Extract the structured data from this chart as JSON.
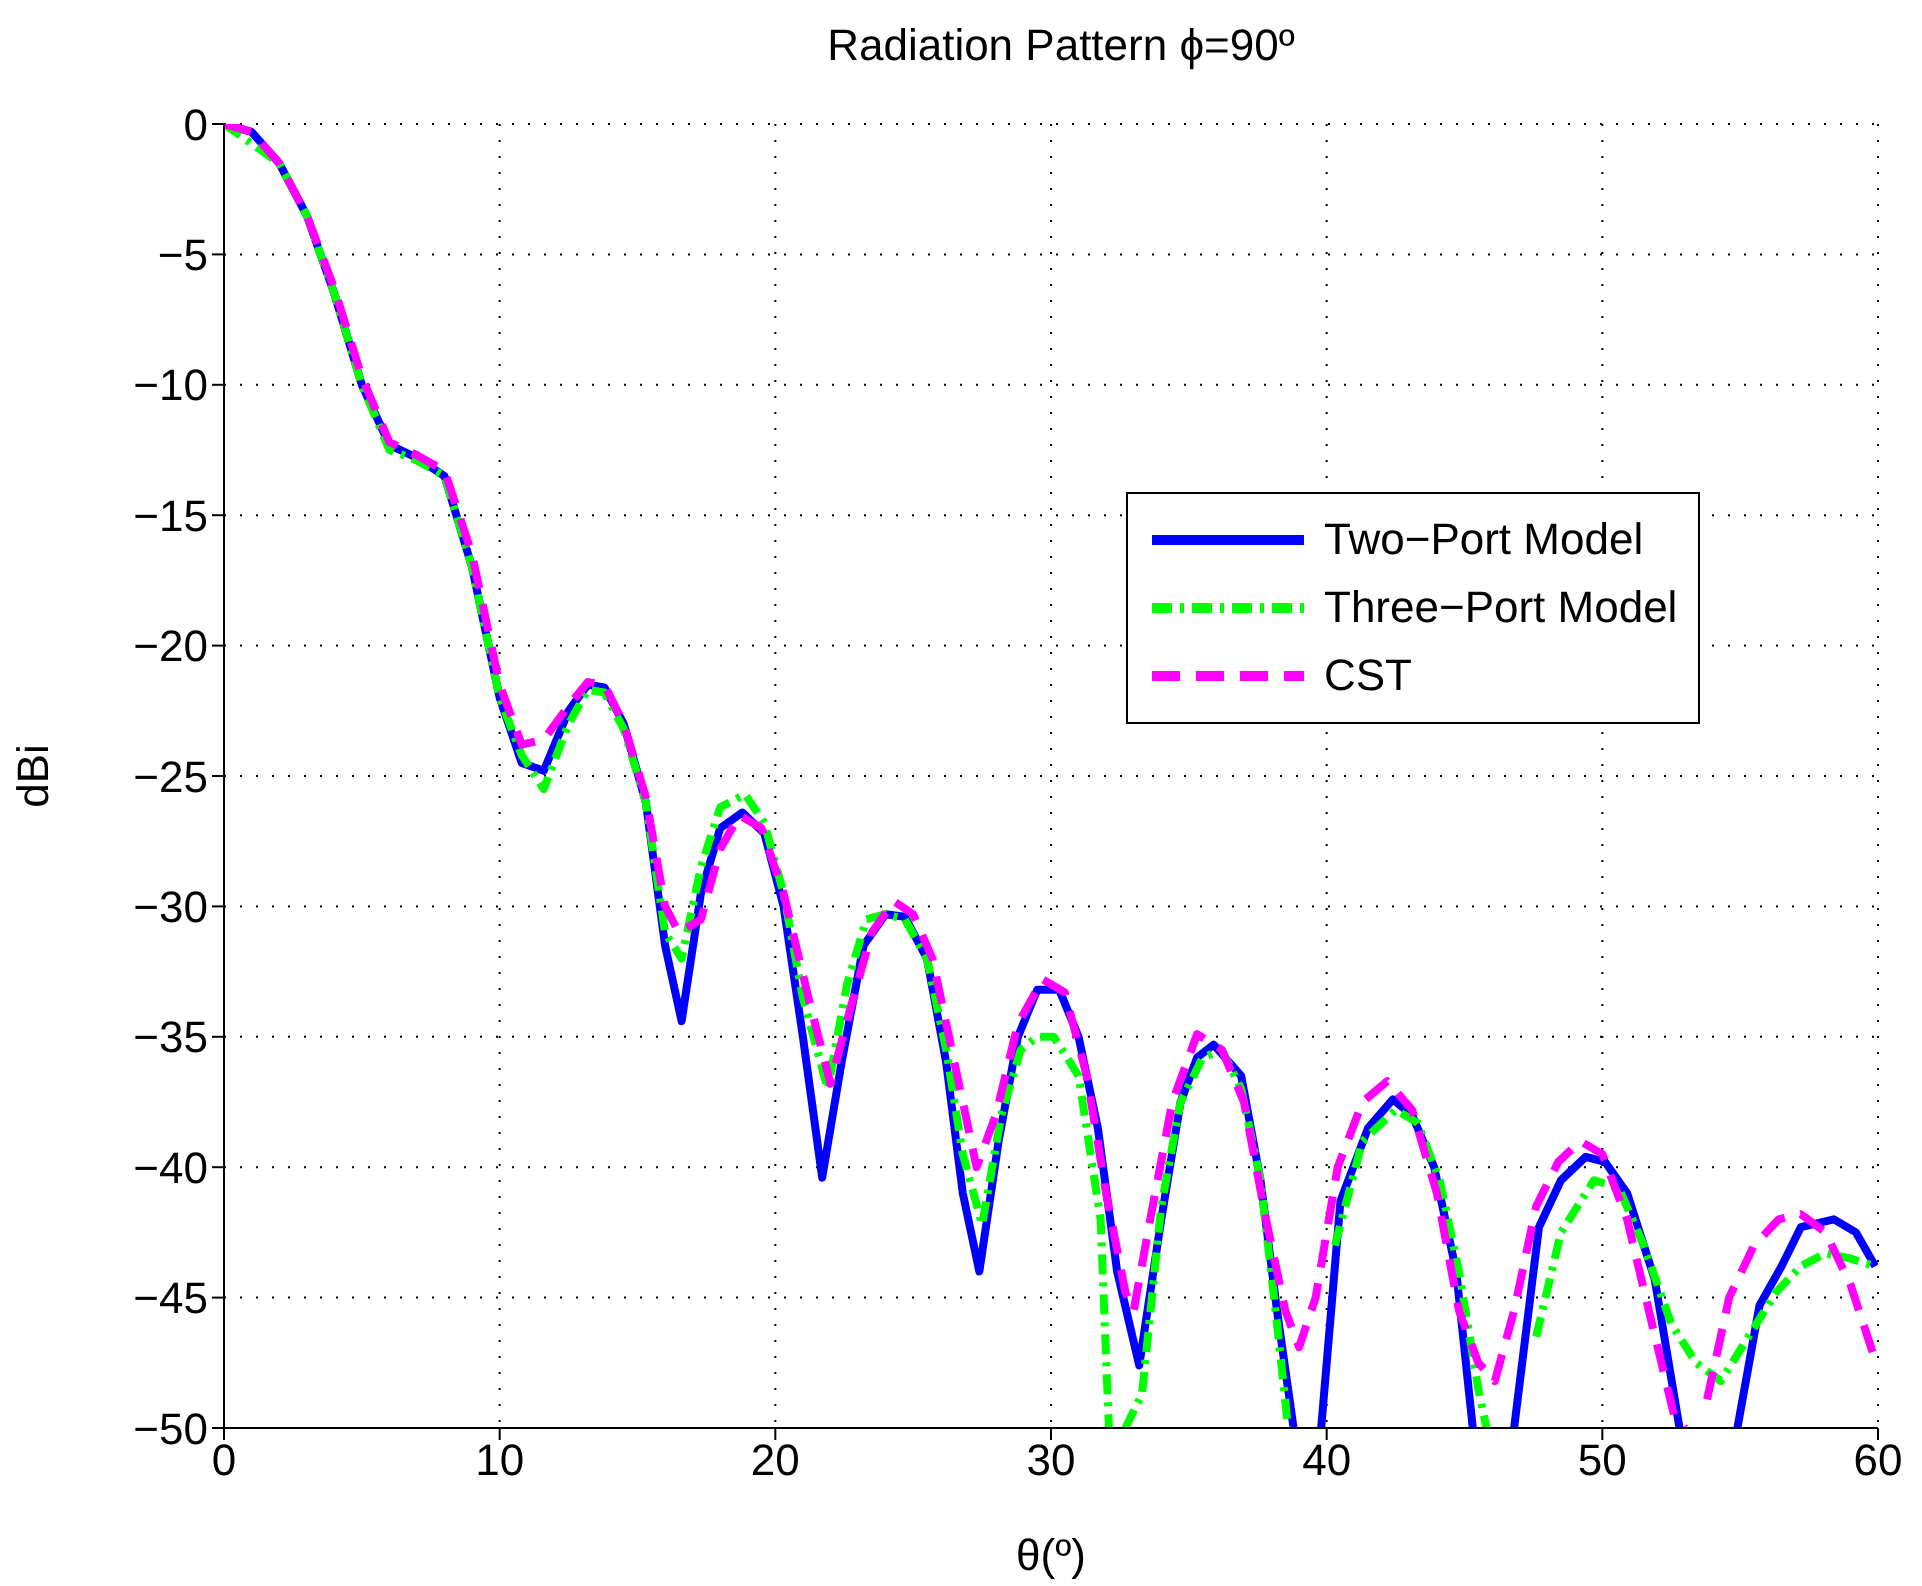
{
  "chart_data": {
    "type": "line",
    "title": "Radiation Pattern ϕ=90º",
    "xlabel": "θ(º)",
    "ylabel": "dBi",
    "xlim": [
      0,
      60
    ],
    "xticks": [
      0,
      10,
      20,
      30,
      40,
      50,
      60
    ],
    "ylim": [
      -50,
      0
    ],
    "yticks": [
      -50,
      -45,
      -40,
      -35,
      -30,
      -25,
      -20,
      -15,
      -10,
      -5,
      0
    ],
    "grid": true,
    "legend": "right",
    "series": [
      {
        "name": "Two−Port Model",
        "color": "#0000ff",
        "line_style": "solid",
        "x": [
          0,
          1,
          2,
          3,
          4,
          5,
          6,
          7,
          8,
          9,
          10,
          10.8,
          11.6,
          12.5,
          13.2,
          13.8,
          14.5,
          15.3,
          16.0,
          16.6,
          17.3,
          18.0,
          18.8,
          19.6,
          20.3,
          21.0,
          21.7,
          22.4,
          23.2,
          24.0,
          24.7,
          25.5,
          26.2,
          26.8,
          27.4,
          28.1,
          28.8,
          29.5,
          30.3,
          31.0,
          31.7,
          32.4,
          33.2,
          34.0,
          34.7,
          35.3,
          35.9,
          36.9,
          37.6,
          38.2,
          38.8,
          39.0,
          39.8,
          40.5,
          41.5,
          42.4,
          43.1,
          43.9,
          44.7,
          45.3,
          46.0,
          46.8,
          47.7,
          48.5,
          49.4,
          50.1,
          50.9,
          51.9,
          52.8,
          53.8,
          54.9,
          55.7,
          56.5,
          57.2,
          58.4,
          59.2,
          59.9
        ],
        "values": [
          0,
          -0.3,
          -1.5,
          -3.5,
          -6.5,
          -10,
          -12.3,
          -12.8,
          -13.5,
          -17,
          -22,
          -24.5,
          -24.8,
          -22.5,
          -21.5,
          -21.6,
          -23,
          -26,
          -31.5,
          -34.4,
          -29.5,
          -27,
          -26.4,
          -27.2,
          -30,
          -35,
          -40.4,
          -36,
          -31.5,
          -30.3,
          -30.4,
          -32,
          -36,
          -41,
          -44,
          -39,
          -35,
          -33.2,
          -33.2,
          -35,
          -38.5,
          -44,
          -47.6,
          -42,
          -37.5,
          -35.8,
          -35.3,
          -36.5,
          -40.5,
          -45.5,
          -50,
          null,
          -50,
          -41.3,
          -38.5,
          -37.4,
          -38,
          -40,
          -44,
          -50,
          null,
          -50,
          -42.3,
          -40.5,
          -39.6,
          -39.8,
          -41,
          -44.3,
          -50,
          null,
          -50,
          -45.3,
          -43.8,
          -42.3,
          -42,
          -42.5,
          -43.8
        ]
      },
      {
        "name": "Three−Port Model",
        "color": "#00ff00",
        "line_style": "dashdot",
        "x": [
          0,
          2,
          3,
          4,
          5,
          6,
          7,
          8,
          9,
          10,
          10.8,
          11.6,
          12.5,
          13.2,
          13.8,
          14.5,
          15.3,
          16.0,
          16.6,
          17.3,
          18.0,
          18.9,
          19.6,
          20.3,
          21.0,
          21.9,
          22.6,
          23.3,
          24.0,
          24.7,
          25.5,
          26.2,
          26.8,
          27.5,
          28.2,
          28.9,
          29.5,
          30.1,
          31.0,
          31.8,
          32.1,
          32.5,
          32.7,
          33.3,
          34.0,
          34.7,
          35.5,
          36.2,
          36.9,
          37.6,
          38.2,
          38.6,
          39.5,
          40.3,
          41.3,
          42.5,
          43.3,
          44.1,
          44.8,
          45.5,
          45.8,
          47.0,
          47.6,
          48.5,
          49.7,
          50.6,
          51.5,
          52.5,
          53.4,
          54.3,
          55.3,
          56.3,
          57.2,
          58.1,
          59.0,
          59.9
        ],
        "values": [
          0,
          -1.5,
          -3.5,
          -6.5,
          -10,
          -12.5,
          -12.9,
          -13.5,
          -17,
          -22,
          -24.2,
          -25.5,
          -23,
          -21.7,
          -21.8,
          -23.2,
          -26,
          -31,
          -32,
          -28.5,
          -26.2,
          -25.7,
          -26.8,
          -29.5,
          -33.5,
          -37,
          -33,
          -30.5,
          -30.3,
          -30.5,
          -32,
          -35.5,
          -39.5,
          -42.2,
          -38,
          -35.5,
          -35,
          -35,
          -36.5,
          -42,
          -50,
          null,
          -50,
          -48.7,
          -41.5,
          -37.5,
          -35.8,
          -35.5,
          -37,
          -40.5,
          -46,
          -50,
          null,
          -43,
          -39,
          -37.8,
          -38.3,
          -40.5,
          -44,
          -48.5,
          -50,
          null,
          -46.5,
          -42.5,
          -40.5,
          -40.8,
          -43,
          -46,
          -47.5,
          -48.2,
          -46.5,
          -44.8,
          -43.8,
          -43.3,
          -43.5,
          -43.8
        ]
      },
      {
        "name": "CST",
        "color": "#ff00ff",
        "line_style": "dashed",
        "x": [
          0,
          1,
          2,
          3,
          4,
          5,
          6,
          7,
          8,
          9,
          10,
          10.8,
          11.6,
          12.5,
          13.2,
          13.8,
          14.5,
          15.3,
          16.0,
          16.5,
          17.3,
          18.0,
          18.7,
          19.5,
          20.3,
          21.2,
          22.0,
          22.7,
          23.5,
          24.3,
          25.0,
          25.7,
          26.5,
          27.3,
          28.0,
          28.8,
          29.7,
          30.5,
          31.3,
          32.0,
          32.7,
          33.0,
          33.6,
          34.4,
          35.3,
          36.2,
          37.0,
          37.8,
          38.5,
          39.0,
          39.6,
          40.4,
          41.3,
          42.2,
          43.1,
          44.0,
          44.8,
          45.5,
          46.1,
          46.8,
          47.6,
          48.4,
          49.2,
          50.0,
          50.9,
          51.8,
          52.6,
          53.0,
          53.5,
          53.8,
          54.6,
          55.5,
          56.4,
          57.2,
          58.1,
          59.0,
          59.9
        ],
        "values": [
          0,
          -0.3,
          -1.5,
          -3.5,
          -6.3,
          -9.7,
          -12.2,
          -12.7,
          -13.3,
          -16.5,
          -21.5,
          -23.8,
          -23.6,
          -22.3,
          -21.4,
          -21.5,
          -23,
          -25.8,
          -30,
          -31,
          -30.5,
          -27.8,
          -26.5,
          -27,
          -29.5,
          -33.5,
          -36.8,
          -34,
          -31,
          -29.8,
          -30.3,
          -32,
          -36,
          -40,
          -38,
          -34.5,
          -32.8,
          -33.3,
          -36.5,
          -41,
          -44.8,
          -45.5,
          -42,
          -37.5,
          -34.9,
          -35.5,
          -37.5,
          -42,
          -45.5,
          -46.9,
          -45,
          -40,
          -37.5,
          -36.7,
          -37.8,
          -41,
          -45.5,
          -47.5,
          -48.2,
          -45.5,
          -41.5,
          -39.8,
          -39,
          -39.5,
          -42,
          -46,
          -49.5,
          -50,
          null,
          -48.9,
          -45,
          -43,
          -42,
          -41.8,
          -42.5,
          -44.5,
          -47.4
        ]
      }
    ]
  }
}
